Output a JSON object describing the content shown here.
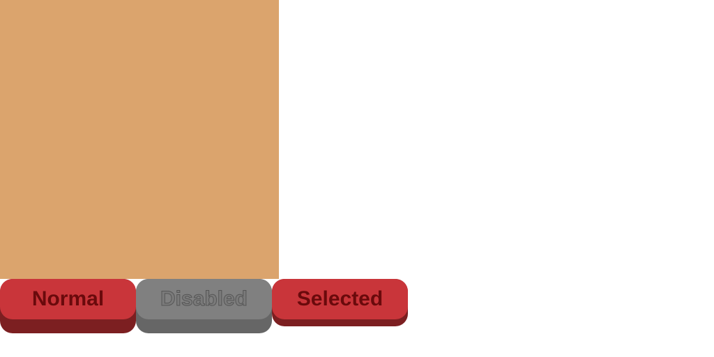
{
  "canvas": {
    "color": "#dba46d"
  },
  "buttons": {
    "normal": {
      "label": "Normal",
      "face_color": "#c9353a",
      "shadow_color": "#7c1f21",
      "text_color": "#6a0a0c"
    },
    "disabled": {
      "label": "Disabled",
      "face_color": "#808080",
      "shadow_color": "#666666",
      "text_color": "#7a7a7a"
    },
    "selected": {
      "label": "Selected",
      "face_color": "#c9353a",
      "shadow_color": "#7c1f21",
      "text_color": "#6a0a0c"
    }
  }
}
